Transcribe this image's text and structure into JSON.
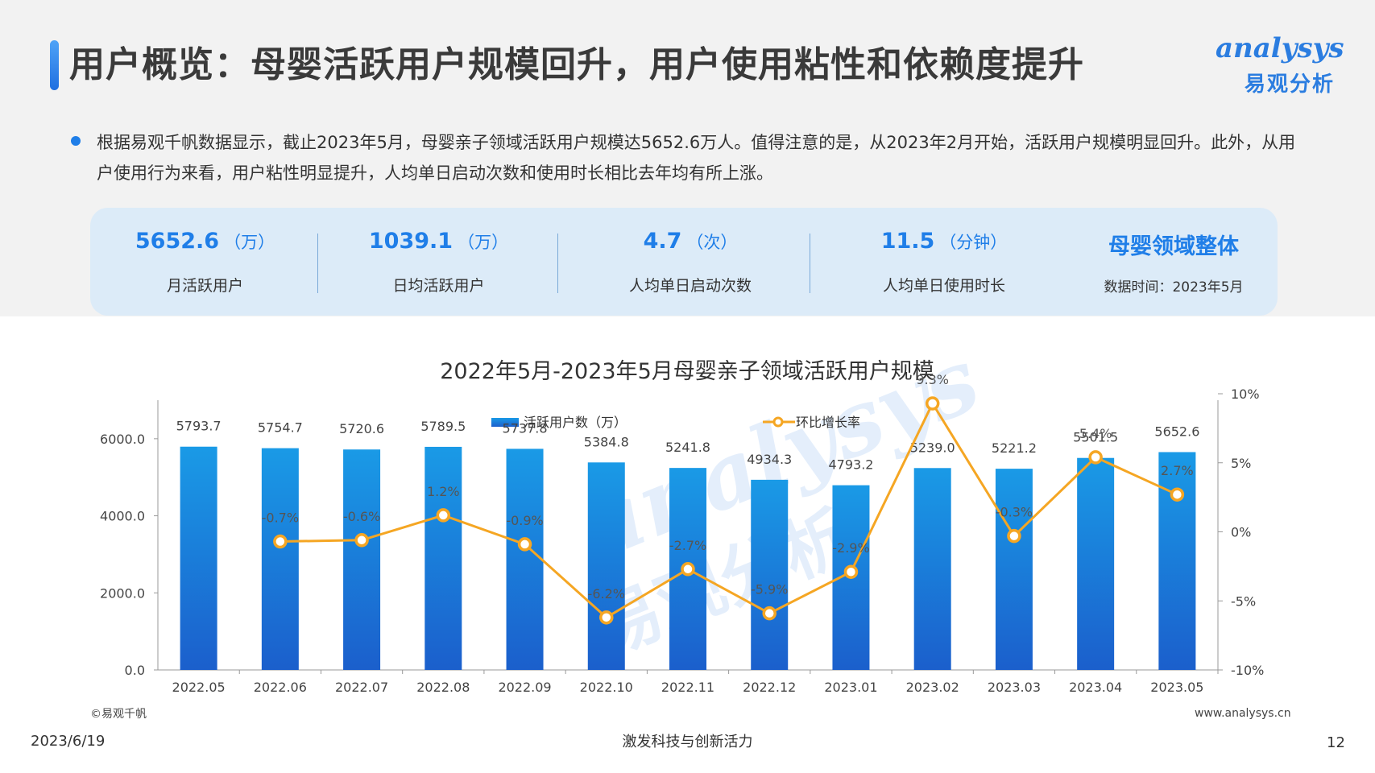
{
  "header": {
    "title": "用户概览：母婴活跃用户规模回升，用户使用粘性和依赖度提升",
    "logo_en": "analysys",
    "logo_cn": "易观分析"
  },
  "summary": {
    "text": "根据易观千帆数据显示，截止2023年5月，母婴亲子领域活跃用户规模达5652.6万人。值得注意的是，从2023年2月开始，活跃用户规模明显回升。此外，从用户使用行为来看，用户粘性明显提升，人均单日启动次数和使用时长相比去年均有所上涨。"
  },
  "kpis": [
    {
      "value": "5652.6",
      "unit": "（万）",
      "label": "月活跃用户"
    },
    {
      "value": "1039.1",
      "unit": "（万）",
      "label": "日均活跃用户"
    },
    {
      "value": "4.7",
      "unit": "（次）",
      "label": "人均单日启动次数"
    },
    {
      "value": "11.5",
      "unit": "（分钟）",
      "label": "人均单日使用时长"
    }
  ],
  "kpi_scope": {
    "title": "母婴领域整体",
    "date": "数据时间：2023年5月"
  },
  "colors": {
    "accent": "#1f7ee8",
    "bar_top": "#1a9ae6",
    "bar_bottom": "#1b5fcc",
    "line": "#f5a623"
  },
  "chart_data": {
    "type": "bar",
    "title": "2022年5月-2023年5月母婴亲子领域活跃用户规模",
    "categories": [
      "2022.05",
      "2022.06",
      "2022.07",
      "2022.08",
      "2022.09",
      "2022.10",
      "2022.11",
      "2022.12",
      "2023.01",
      "2023.02",
      "2023.03",
      "2023.04",
      "2023.05"
    ],
    "series": [
      {
        "name": "活跃用户数（万）",
        "type": "bar",
        "axis": "left",
        "values": [
          5793.7,
          5754.7,
          5720.6,
          5789.5,
          5737.8,
          5384.8,
          5241.8,
          4934.3,
          4793.2,
          5239.0,
          5221.2,
          5501.5,
          5652.6
        ],
        "labels": [
          "5793.7",
          "5754.7",
          "5720.6",
          "5789.5",
          "5737.8",
          "5384.8",
          "5241.8",
          "4934.3",
          "4793.2",
          "5239.0",
          "5221.2",
          "5501.5",
          "5652.6"
        ]
      },
      {
        "name": "环比增长率",
        "type": "line",
        "axis": "right",
        "values": [
          null,
          -0.7,
          -0.6,
          1.2,
          -0.9,
          -6.2,
          -2.7,
          -5.9,
          -2.9,
          9.3,
          -0.3,
          5.4,
          2.7
        ],
        "labels": [
          "",
          "-0.7%",
          "-0.6%",
          "1.2%",
          "-0.9%",
          "-6.2%",
          "-2.7%",
          "-5.9%",
          "-2.9%",
          "9.3%",
          "-0.3%",
          "5.4%",
          "2.7%"
        ]
      }
    ],
    "y_left": {
      "min": 0,
      "max": 7000,
      "ticks": [
        0,
        2000,
        4000,
        6000
      ],
      "tick_labels": [
        "0.0",
        "2000.0",
        "4000.0",
        "6000.0"
      ]
    },
    "y_right": {
      "min": -10,
      "max": 10,
      "ticks": [
        -10,
        -5,
        0,
        5,
        10
      ],
      "tick_labels": [
        "-10%",
        "-5%",
        "0%",
        "5%",
        "10%"
      ]
    },
    "legend": "top-center",
    "grid": false,
    "watermark_cn": "易观分析",
    "watermark_en": "analysys"
  },
  "footer": {
    "source": "©易观千帆",
    "url": "www.analysys.cn",
    "date": "2023/6/19",
    "slogan": "激发科技与创新活力",
    "page": "12"
  }
}
